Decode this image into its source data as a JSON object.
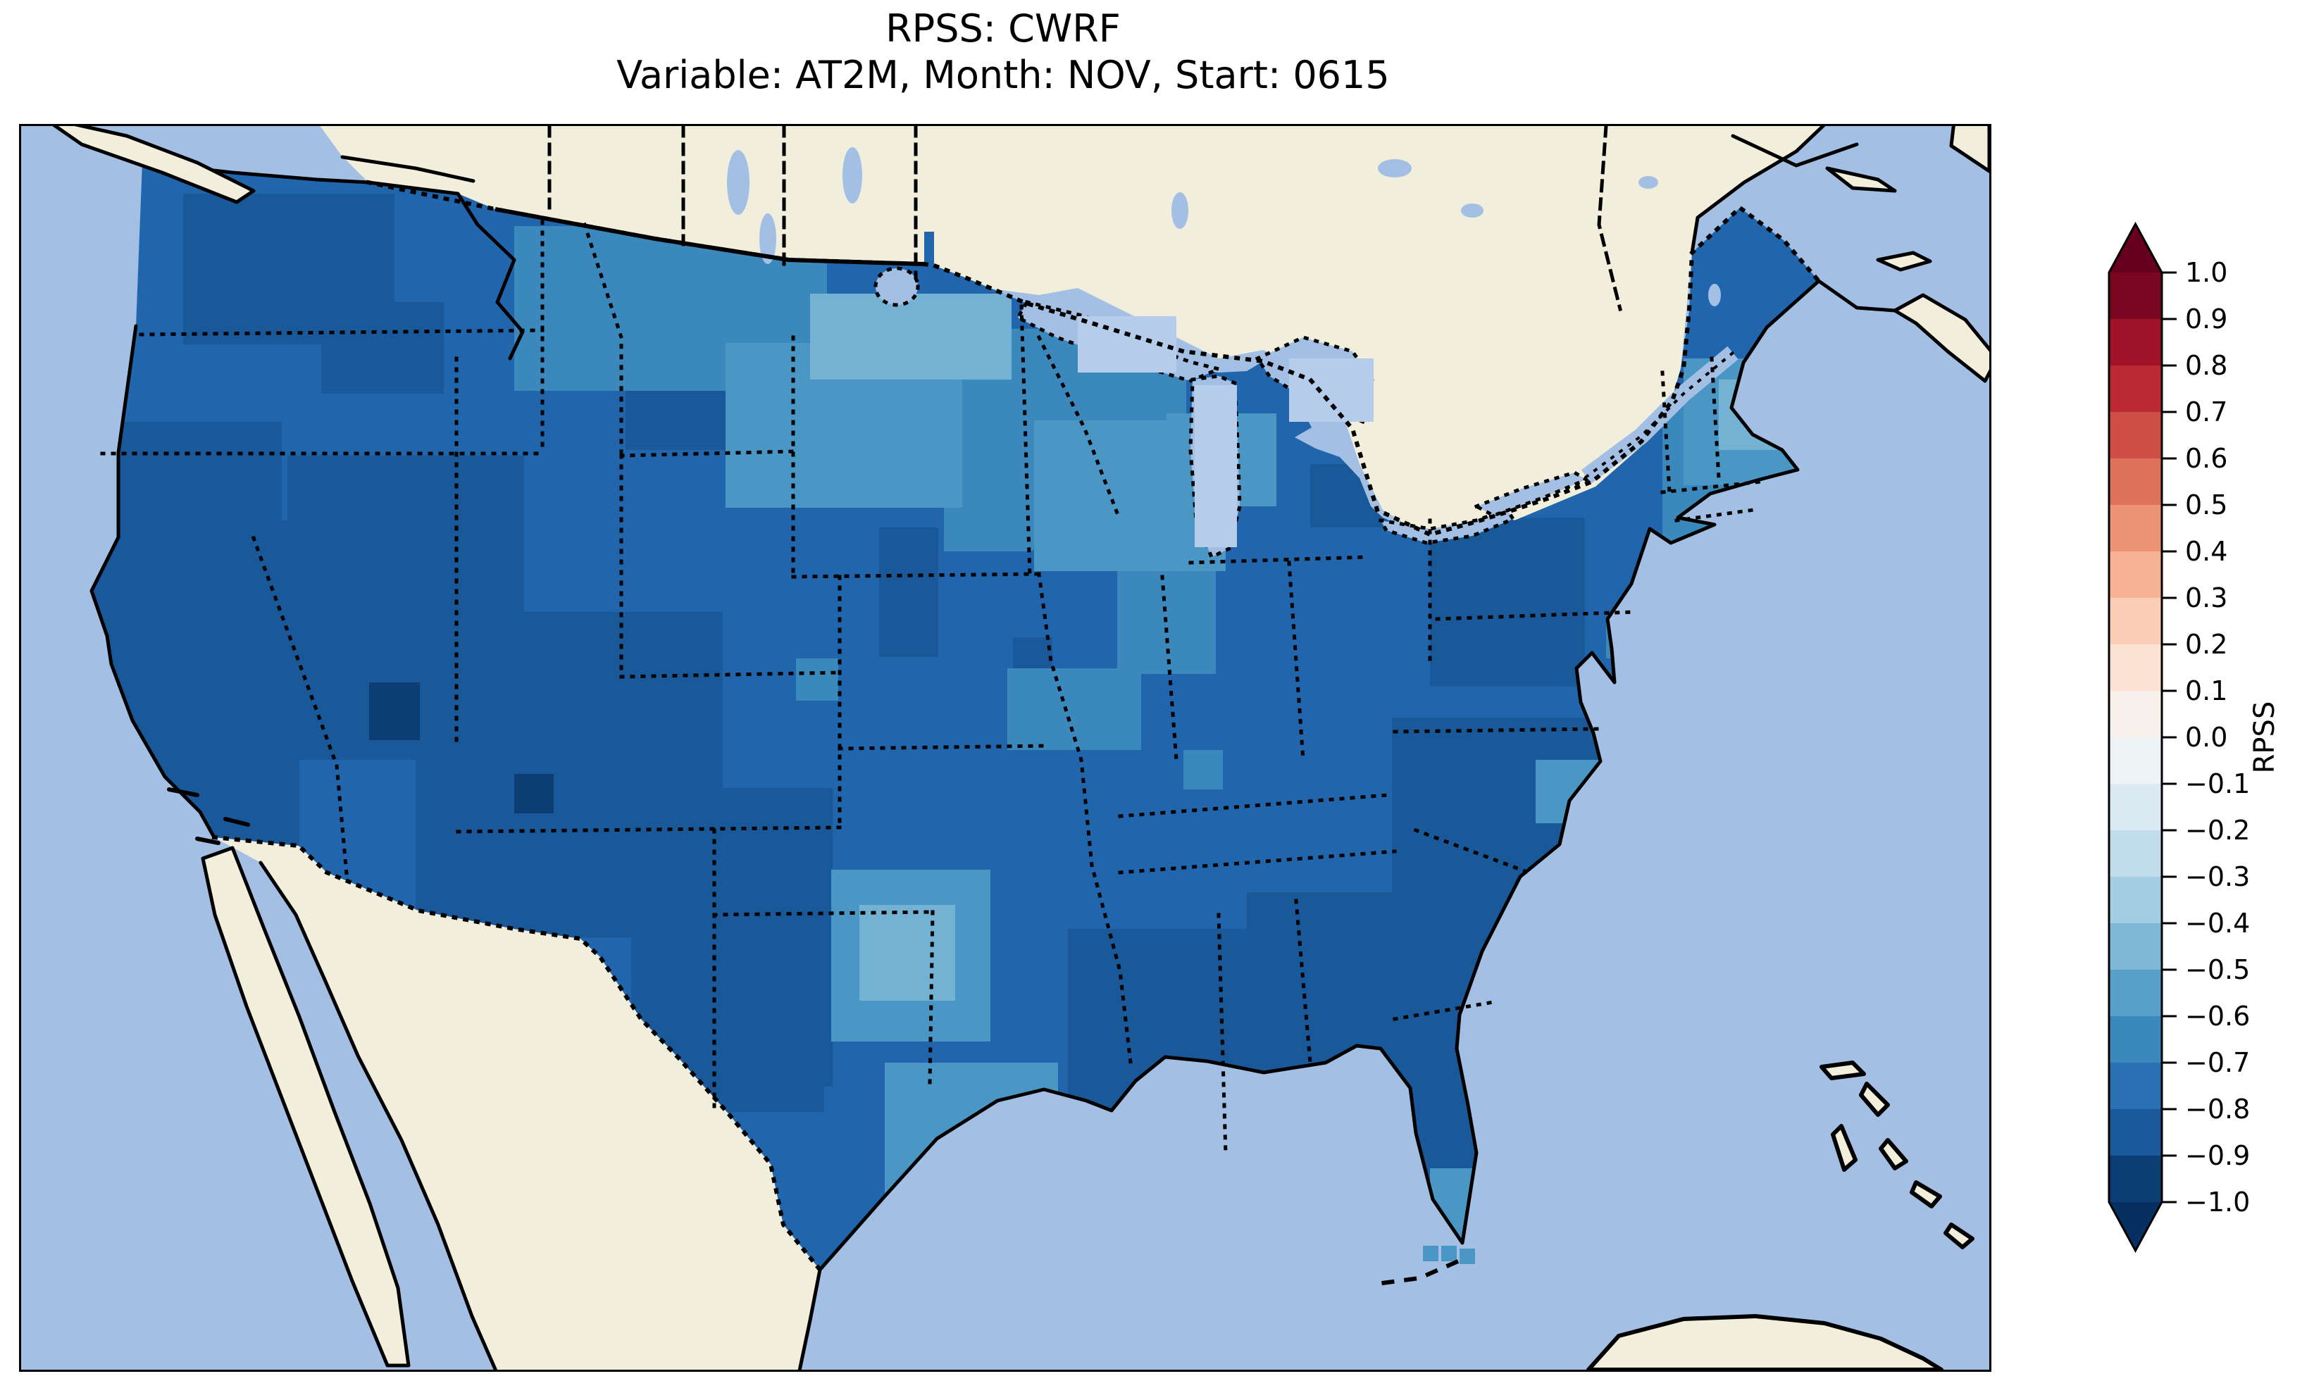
{
  "title": {
    "line1": "RPSS: CWRF",
    "line2": "Variable: AT2M, Month: NOV, Start: 0615"
  },
  "colorbar": {
    "label": "RPSS",
    "ticks": [
      "1.0",
      "0.9",
      "0.8",
      "0.7",
      "0.6",
      "0.5",
      "0.4",
      "0.3",
      "0.2",
      "0.1",
      "0.0",
      "−0.1",
      "−0.2",
      "−0.3",
      "−0.4",
      "−0.5",
      "−0.6",
      "−0.7",
      "−0.8",
      "−0.9",
      "−1.0"
    ],
    "bands": [
      "#7a0622",
      "#9f1228",
      "#bb2a33",
      "#cd4e44",
      "#dd715a",
      "#ec9475",
      "#f6b293",
      "#fbcdb6",
      "#fbe2d3",
      "#f8f0eb",
      "#edf2f5",
      "#dbeaf2",
      "#c1ddec",
      "#a2cde3",
      "#7eb8d7",
      "#57a0ca",
      "#3b88bd",
      "#2971b2",
      "#1a5999",
      "#0c3e74"
    ],
    "extend_over": "#67001f",
    "extend_under": "#053061",
    "outline_color": "#000000",
    "tick_font_px": 38
  },
  "map": {
    "colors": {
      "ocean": "#a3bfe3",
      "land": "#f1eedb",
      "lake_cell": "#b5cdeb",
      "coast": "#000000",
      "us_base": "#2166ac"
    },
    "palette": {
      "n10": "#0c3e74",
      "n9": "#1a5999",
      "n8": "#2166ac",
      "n7": "#3b88bd",
      "n6": "#4a96c5",
      "n5": "#74b2d4",
      "n4": "#9cc9e1"
    },
    "patches": [
      [
        230,
        96,
        300,
        214,
        "n9"
      ],
      [
        426,
        250,
        174,
        130,
        "n9"
      ],
      [
        118,
        420,
        252,
        270,
        "n9"
      ],
      [
        55,
        560,
        340,
        545,
        "n9"
      ],
      [
        378,
        468,
        336,
        432,
        "n9"
      ],
      [
        560,
        690,
        436,
        462,
        "n9"
      ],
      [
        866,
        940,
        286,
        424,
        "n9"
      ],
      [
        940,
        1180,
        200,
        220,
        "n9"
      ],
      [
        858,
        348,
        152,
        112,
        "n9"
      ],
      [
        1218,
        570,
        84,
        184,
        "n9"
      ],
      [
        1482,
        508,
        60,
        60,
        "n9"
      ],
      [
        1408,
        726,
        56,
        56,
        "n9"
      ],
      [
        1830,
        480,
        110,
        90,
        "n9"
      ],
      [
        2000,
        556,
        220,
        240,
        "n9"
      ],
      [
        1946,
        840,
        470,
        430,
        "n9"
      ],
      [
        1740,
        1088,
        516,
        442,
        "n9"
      ],
      [
        1486,
        1140,
        316,
        364,
        "n9"
      ],
      [
        1836,
        1288,
        286,
        312,
        "n9"
      ],
      [
        494,
        790,
        72,
        82,
        "n10"
      ],
      [
        700,
        920,
        56,
        56,
        "n10"
      ],
      [
        700,
        142,
        444,
        234,
        "n7"
      ],
      [
        1330,
        288,
        324,
        314,
        "n7"
      ],
      [
        1310,
        468,
        126,
        136,
        "n7"
      ],
      [
        1400,
        770,
        190,
        116,
        "n7"
      ],
      [
        1556,
        628,
        140,
        150,
        "n7"
      ],
      [
        2096,
        250,
        210,
        200,
        "n7"
      ],
      [
        2330,
        380,
        200,
        250,
        "n7"
      ],
      [
        1100,
        756,
        60,
        60,
        "n7"
      ],
      [
        2250,
        700,
        56,
        56,
        "n7"
      ],
      [
        1650,
        886,
        56,
        56,
        "n7"
      ],
      [
        1000,
        308,
        336,
        234,
        "n6"
      ],
      [
        1438,
        418,
        272,
        214,
        "n6"
      ],
      [
        2210,
        300,
        110,
        110,
        "n6"
      ],
      [
        2360,
        330,
        180,
        180,
        "n6"
      ],
      [
        2150,
        900,
        90,
        90,
        "n6"
      ],
      [
        2196,
        1000,
        60,
        60,
        "n6"
      ],
      [
        1150,
        1056,
        226,
        244,
        "n6"
      ],
      [
        1226,
        1330,
        246,
        282,
        "n6"
      ],
      [
        2000,
        1480,
        90,
        110,
        "n6"
      ],
      [
        1300,
        1430,
        90,
        90,
        "n6"
      ],
      [
        1626,
        408,
        156,
        132,
        "n6"
      ],
      [
        1120,
        238,
        286,
        122,
        "n5"
      ],
      [
        1190,
        1106,
        136,
        136,
        "n5"
      ],
      [
        2410,
        360,
        100,
        100,
        "n5"
      ]
    ],
    "lake_cells": [
      [
        1500,
        270,
        140,
        80
      ],
      [
        1666,
        368,
        60,
        230
      ],
      [
        1800,
        330,
        120,
        90
      ]
    ],
    "keys_cells": [
      [
        1990,
        1590,
        22,
        22
      ],
      [
        2016,
        1590,
        22,
        22
      ],
      [
        2042,
        1594,
        22,
        22
      ]
    ]
  },
  "chart_data": {
    "type": "heatmap",
    "title": "RPSS: CWRF",
    "subtitle": "Variable: AT2M, Month: NOV, Start: 0615",
    "model": "CWRF",
    "variable": "AT2M",
    "month": "NOV",
    "start": "0615",
    "region": "Contiguous United States (CONUS) with surrounding Canada, Mexico, Gulf of Mexico, Atlantic and Pacific",
    "colorbar_label": "RPSS",
    "levels": [
      -1.0,
      -0.9,
      -0.8,
      -0.7,
      -0.6,
      -0.5,
      -0.4,
      -0.3,
      -0.2,
      -0.1,
      0.0,
      0.1,
      0.2,
      0.3,
      0.4,
      0.5,
      0.6,
      0.7,
      0.8,
      0.9,
      1.0
    ],
    "colormap": "RdBu_r (red positive, blue negative), discrete 0.1 bands, extended triangular ends",
    "extend": "both",
    "value_summary": "Gridded RPSS values over CONUS are uniformly negative, mostly between -0.9 and -0.4; darkest (-0.9 to -1.0) cells over Utah/Colorado; -0.8 to -0.9 over California, Nevada, the Southwest, New Mexico/west Texas, and the Southeast/mid-Atlantic; -0.5 to -0.7 over Montana, the Dakotas, Minnesota, Texas panhandle, New England; lightest (-0.4 to -0.5) isolated cells near the northern border, Maine and the Florida Keys",
    "legend_position": "right vertical colorbar"
  }
}
